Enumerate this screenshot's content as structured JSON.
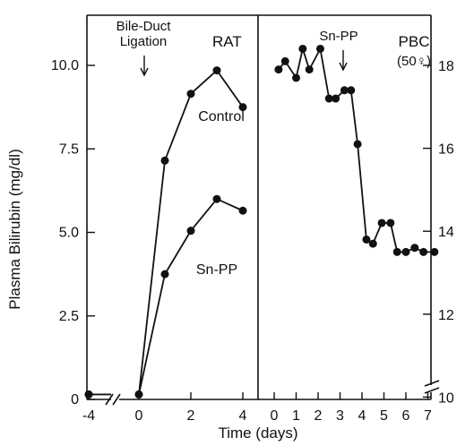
{
  "chart_data": [
    {
      "type": "line",
      "panel_title": "RAT",
      "ylabel": "Plasma Bilirubin (mg/dl)",
      "xlabel": "Time (days)",
      "x_ticks": [
        "-4",
        "0",
        "2",
        "4"
      ],
      "y_ticks": [
        "0",
        "2.5",
        "5.0",
        "7.5",
        "10.0"
      ],
      "ylim": [
        0,
        11.5
      ],
      "axis_break": "x between -4 and 0",
      "annotation": {
        "text_lines": [
          "Bile-Duct",
          "Ligation"
        ],
        "x": 0.2
      },
      "series": [
        {
          "name": "Control",
          "x": [
            -4,
            0,
            1,
            2,
            3,
            4
          ],
          "y": [
            0.15,
            0.15,
            7.15,
            9.15,
            9.85,
            8.75
          ]
        },
        {
          "name": "Sn-PP",
          "x": [
            -4,
            0,
            1,
            2,
            3,
            4
          ],
          "y": [
            0.15,
            0.15,
            3.75,
            5.05,
            6.0,
            5.65
          ]
        }
      ]
    },
    {
      "type": "line",
      "panel_title": "PBC",
      "panel_subtitle": "(50♀)",
      "x_ticks": [
        "0",
        "1",
        "2",
        "3",
        "4",
        "5",
        "6",
        "7"
      ],
      "y_ticks": [
        "10",
        "12",
        "14",
        "16",
        "18"
      ],
      "axis_break": "y below 10",
      "annotation": {
        "text": "Sn-PP",
        "x": 3.1
      },
      "series": [
        {
          "name": "PBC",
          "x": [
            0.2,
            0.5,
            1.0,
            1.3,
            1.6,
            2.1,
            2.5,
            2.8,
            3.2,
            3.5,
            3.8,
            4.2,
            4.5,
            4.9,
            5.3,
            5.6,
            6.0,
            6.4,
            6.8,
            7.3
          ],
          "y": [
            17.9,
            18.1,
            17.7,
            18.4,
            17.9,
            18.4,
            17.2,
            17.2,
            17.4,
            17.4,
            16.1,
            13.8,
            13.7,
            14.2,
            14.2,
            13.5,
            13.5,
            13.6,
            13.5,
            13.5
          ]
        }
      ]
    }
  ]
}
